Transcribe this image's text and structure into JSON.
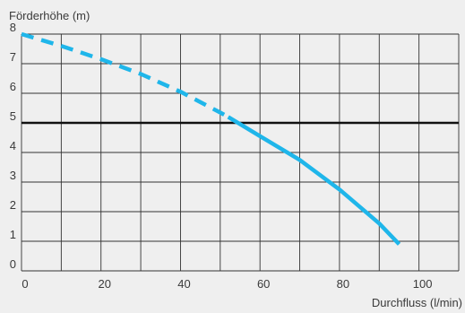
{
  "chart_data": {
    "type": "line",
    "title": "",
    "xlabel": "Durchfluss (l/min)",
    "ylabel": "Förderhöhe (m)",
    "xlim": [
      0,
      110
    ],
    "ylim": [
      0,
      8
    ],
    "x_ticks": [
      {
        "value": 0,
        "label": "0"
      },
      {
        "value": 20,
        "label": "20"
      },
      {
        "value": 40,
        "label": "40"
      },
      {
        "value": 60,
        "label": "60"
      },
      {
        "value": 80,
        "label": "80"
      },
      {
        "value": 100,
        "label": "100"
      }
    ],
    "y_ticks": [
      {
        "value": 0,
        "label": "0"
      },
      {
        "value": 1,
        "label": "1"
      },
      {
        "value": 2,
        "label": "2"
      },
      {
        "value": 3,
        "label": "3"
      },
      {
        "value": 4,
        "label": "4"
      },
      {
        "value": 5,
        "label": "5"
      },
      {
        "value": 6,
        "label": "6"
      },
      {
        "value": 7,
        "label": "7"
      },
      {
        "value": 8,
        "label": "8"
      }
    ],
    "x_grid_step": 10,
    "y_grid_step": 1,
    "grid": true,
    "reference_line": {
      "y": 5
    },
    "series": [
      {
        "style": "dashed",
        "color": "#1fb6ea",
        "x": [
          0,
          10,
          20,
          30,
          40,
          50,
          52
        ],
        "y": [
          8.0,
          7.6,
          7.15,
          6.65,
          6.05,
          5.35,
          5.2
        ]
      },
      {
        "style": "solid",
        "color": "#1fb6ea",
        "x": [
          52,
          60,
          70,
          80,
          90,
          95
        ],
        "y": [
          5.2,
          4.55,
          3.75,
          2.75,
          1.6,
          0.9
        ]
      }
    ]
  }
}
